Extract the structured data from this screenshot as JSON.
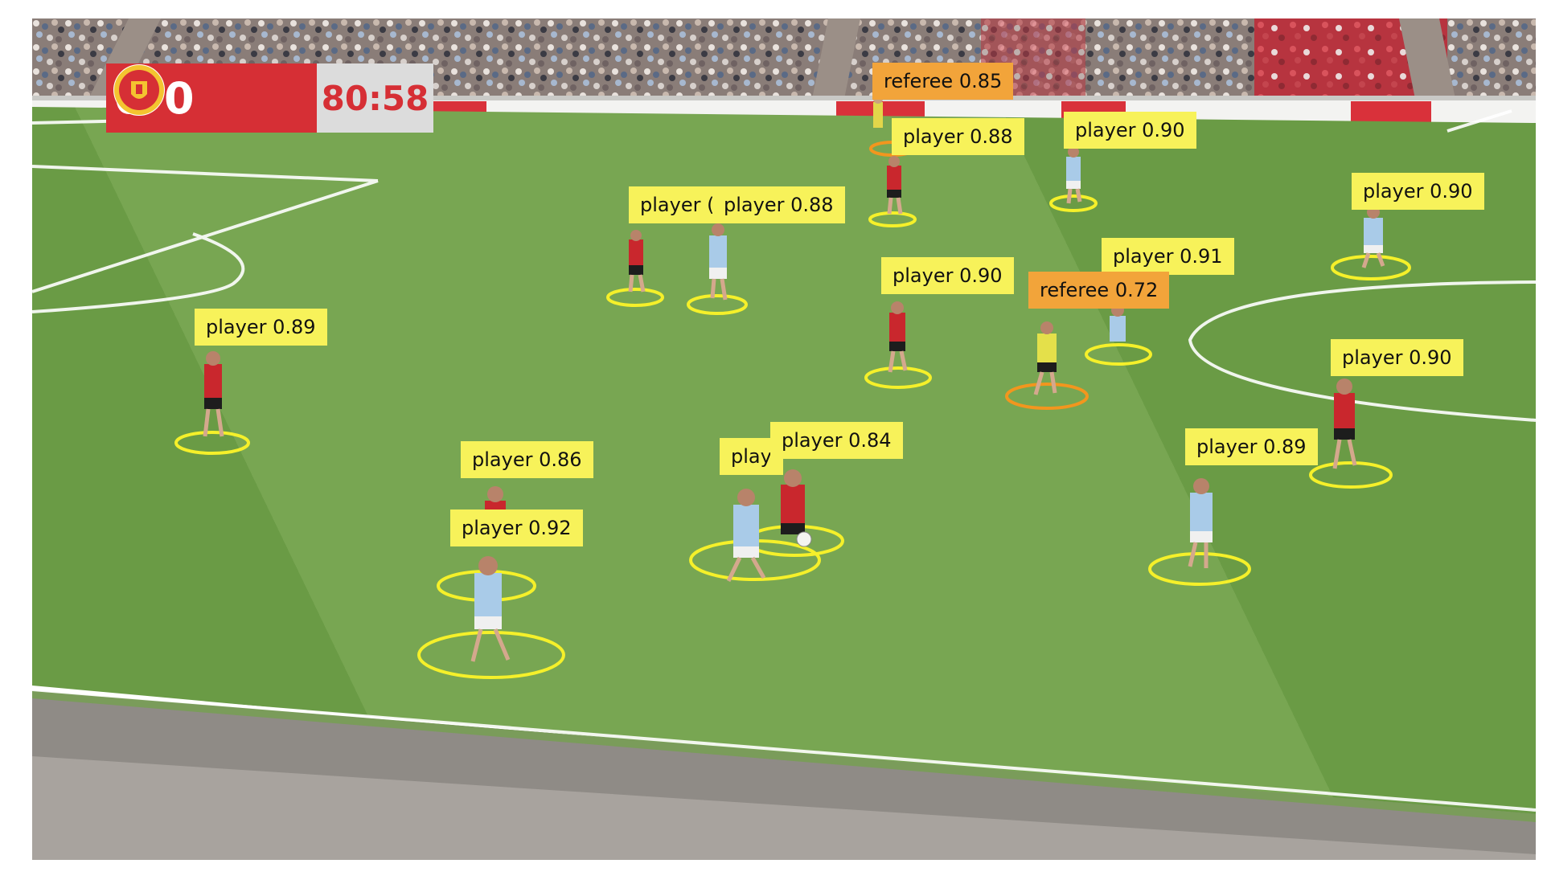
{
  "scoreboard": {
    "home_crest": "manchester-city-crest",
    "away_crest": "manchester-united-crest",
    "score": "0-0",
    "clock": "80:58",
    "score_bg": "#d62f35",
    "clock_bg": "#dcdcdc"
  },
  "detections": [
    {
      "cls": "referee",
      "text": "referee 0.85"
    },
    {
      "cls": "player",
      "text": "player 0.88"
    },
    {
      "cls": "player",
      "text": "player 0.90"
    },
    {
      "cls": "player",
      "text": "player 0.90"
    },
    {
      "cls": "player",
      "text": "player 0.88"
    },
    {
      "cls": "player",
      "text": "player ("
    },
    {
      "cls": "player",
      "text": "player 0.91"
    },
    {
      "cls": "player",
      "text": "player 0.90"
    },
    {
      "cls": "referee",
      "text": "referee 0.72"
    },
    {
      "cls": "player",
      "text": "player 0.89"
    },
    {
      "cls": "player",
      "text": "player 0.90"
    },
    {
      "cls": "player",
      "text": "player 0.84"
    },
    {
      "cls": "player",
      "text": "play"
    },
    {
      "cls": "player",
      "text": "player 0.86"
    },
    {
      "cls": "player",
      "text": "player 0.89"
    },
    {
      "cls": "player",
      "text": "player 0.92"
    }
  ],
  "colors": {
    "player_box": "#f7f25a",
    "referee_box": "#f2a43a",
    "player_ellipse": "#f5f02a",
    "referee_ellipse": "#f2961e",
    "pitch_light": "#7fab57",
    "pitch_dark": "#6e9e48"
  }
}
